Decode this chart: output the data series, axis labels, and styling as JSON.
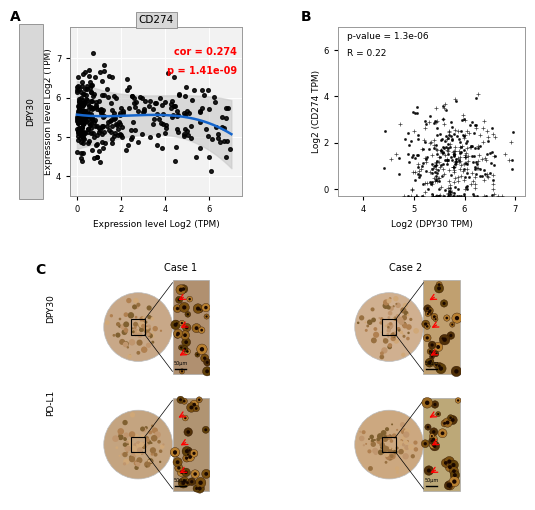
{
  "panel_A": {
    "title": "CD274",
    "xlabel": "Expression level Log2 (TPM)",
    "ylabel": "Expression level Log2 (TPM)",
    "ylabel_side": "DPY30",
    "cor_text": "cor = 0.274",
    "p_text": "p = 1.41e-09",
    "cor_color": "#FF0000",
    "xlim": [
      -0.3,
      7.5
    ],
    "ylim": [
      3.5,
      7.8
    ],
    "xticks": [
      0,
      2,
      4,
      6
    ],
    "yticks": [
      4,
      5,
      6,
      7
    ]
  },
  "panel_B": {
    "xlabel": "Log2 (DPY30 TPM)",
    "ylabel": "Log2 (CD274 TPM)",
    "pval_text": "p-value = 1.3e-06",
    "r_text": "R = 0.22",
    "xlim": [
      3.5,
      7.2
    ],
    "ylim": [
      -0.3,
      7.0
    ],
    "xticks": [
      4,
      5,
      6,
      7
    ],
    "yticks": [
      0,
      2,
      4,
      6
    ]
  },
  "panel_C": {
    "row_labels": [
      "DPY30",
      "PD-L1"
    ],
    "col_labels": [
      "Case 1",
      "Case 2"
    ]
  },
  "figure": {
    "background": "#ffffff"
  }
}
